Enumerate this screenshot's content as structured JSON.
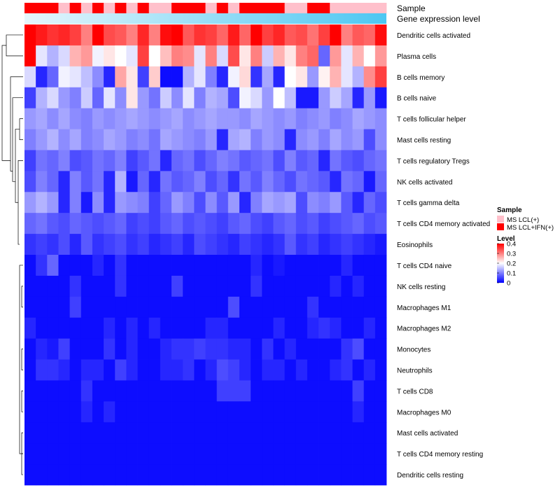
{
  "chart_data": {
    "type": "heatmap",
    "title": "",
    "annotation_tracks": [
      "Sample",
      "Gene expression level"
    ],
    "sample_groups": [
      "MS LCL+IFN(+)",
      "MS LCL+IFN(+)",
      "MS LCL+IFN(+)",
      "MS LCL(+)",
      "MS LCL+IFN(+)",
      "MS LCL(+)",
      "MS LCL+IFN(+)",
      "MS LCL(+)",
      "MS LCL+IFN(+)",
      "MS LCL(+)",
      "MS LCL+IFN(+)",
      "MS LCL(+)",
      "MS LCL(+)",
      "MS LCL+IFN(+)",
      "MS LCL+IFN(+)",
      "MS LCL+IFN(+)",
      "MS LCL(+)",
      "MS LCL+IFN(+)",
      "MS LCL(+)",
      "MS LCL+IFN(+)",
      "MS LCL+IFN(+)",
      "MS LCL+IFN(+)",
      "MS LCL+IFN(+)",
      "MS LCL(+)",
      "MS LCL(+)",
      "MS LCL+IFN(+)",
      "MS LCL+IFN(+)",
      "MS LCL(+)",
      "MS LCL(+)",
      "MS LCL(+)",
      "MS LCL(+)",
      "MS LCL(+)"
    ],
    "expression_gradient": [
      "#e6f6fc",
      "#4dc7f2"
    ],
    "rows": [
      {
        "label": "Dendritic cells activated",
        "values": [
          0.4,
          0.38,
          0.36,
          0.37,
          0.35,
          0.3,
          0.4,
          0.34,
          0.33,
          0.3,
          0.37,
          0.3,
          0.39,
          0.4,
          0.33,
          0.36,
          0.35,
          0.32,
          0.38,
          0.32,
          0.4,
          0.35,
          0.37,
          0.33,
          0.34,
          0.31,
          0.35,
          0.4,
          0.3,
          0.33,
          0.32,
          0.39
        ]
      },
      {
        "label": "Plasma cells",
        "values": [
          0.4,
          0.18,
          0.14,
          0.17,
          0.26,
          0.28,
          0.19,
          0.22,
          0.2,
          0.18,
          0.35,
          0.2,
          0.25,
          0.3,
          0.29,
          0.18,
          0.3,
          0.17,
          0.34,
          0.22,
          0.3,
          0.16,
          0.26,
          0.22,
          0.3,
          0.32,
          0.08,
          0.28,
          0.18,
          0.26,
          0.2,
          0.28
        ]
      },
      {
        "label": "B cells memory",
        "values": [
          0.17,
          0.03,
          0.08,
          0.19,
          0.18,
          0.15,
          0.11,
          0.03,
          0.27,
          0.22,
          0.05,
          0.24,
          0.01,
          0.01,
          0.14,
          0.18,
          0.1,
          0.03,
          0.19,
          0.23,
          0.04,
          0.13,
          0.03,
          0.2,
          0.22,
          0.12,
          0.21,
          0.26,
          0.18,
          0.14,
          0.29,
          0.35
        ]
      },
      {
        "label": "B cells naive",
        "values": [
          0.05,
          0.14,
          0.17,
          0.12,
          0.1,
          0.16,
          0.08,
          0.18,
          0.11,
          0.22,
          0.12,
          0.09,
          0.16,
          0.11,
          0.18,
          0.1,
          0.14,
          0.13,
          0.06,
          0.19,
          0.17,
          0.12,
          0.2,
          0.15,
          0.02,
          0.02,
          0.12,
          0.16,
          0.13,
          0.03,
          0.12,
          0.02
        ]
      },
      {
        "label": "T cells follicular helper",
        "values": [
          0.12,
          0.13,
          0.11,
          0.13,
          0.11,
          0.1,
          0.12,
          0.11,
          0.12,
          0.13,
          0.12,
          0.11,
          0.12,
          0.13,
          0.11,
          0.12,
          0.13,
          0.12,
          0.12,
          0.11,
          0.13,
          0.12,
          0.11,
          0.12,
          0.1,
          0.11,
          0.12,
          0.1,
          0.11,
          0.13,
          0.12,
          0.11
        ]
      },
      {
        "label": "Mast cells resting",
        "values": [
          0.1,
          0.12,
          0.14,
          0.11,
          0.13,
          0.1,
          0.11,
          0.13,
          0.12,
          0.1,
          0.11,
          0.09,
          0.13,
          0.12,
          0.11,
          0.1,
          0.12,
          0.03,
          0.13,
          0.14,
          0.1,
          0.12,
          0.11,
          0.03,
          0.11,
          0.12,
          0.1,
          0.13,
          0.11,
          0.12,
          0.06,
          0.11
        ]
      },
      {
        "label": "T cells regulatory  Tregs",
        "values": [
          0.05,
          0.09,
          0.08,
          0.1,
          0.06,
          0.07,
          0.09,
          0.08,
          0.1,
          0.05,
          0.07,
          0.09,
          0.03,
          0.08,
          0.09,
          0.06,
          0.08,
          0.1,
          0.09,
          0.07,
          0.08,
          0.09,
          0.06,
          0.1,
          0.07,
          0.08,
          0.03,
          0.09,
          0.07,
          0.06,
          0.08,
          0.09
        ]
      },
      {
        "label": "NK cells activated",
        "values": [
          0.06,
          0.1,
          0.08,
          0.03,
          0.1,
          0.07,
          0.09,
          0.03,
          0.14,
          0.02,
          0.08,
          0.03,
          0.09,
          0.07,
          0.08,
          0.1,
          0.06,
          0.08,
          0.04,
          0.09,
          0.07,
          0.1,
          0.08,
          0.06,
          0.09,
          0.08,
          0.07,
          0.03,
          0.09,
          0.08,
          0.02,
          0.08
        ]
      },
      {
        "label": "T cells gamma delta",
        "values": [
          0.12,
          0.14,
          0.12,
          0.03,
          0.1,
          0.02,
          0.11,
          0.03,
          0.12,
          0.11,
          0.1,
          0.05,
          0.08,
          0.12,
          0.1,
          0.06,
          0.11,
          0.07,
          0.12,
          0.03,
          0.1,
          0.13,
          0.12,
          0.13,
          0.06,
          0.11,
          0.1,
          0.12,
          0.07,
          0.03,
          0.08,
          0.06
        ]
      },
      {
        "label": "T cells CD4 memory activated",
        "values": [
          0.08,
          0.09,
          0.07,
          0.06,
          0.08,
          0.07,
          0.06,
          0.07,
          0.08,
          0.05,
          0.06,
          0.05,
          0.07,
          0.08,
          0.06,
          0.07,
          0.06,
          0.05,
          0.07,
          0.08,
          0.06,
          0.05,
          0.07,
          0.08,
          0.06,
          0.07,
          0.05,
          0.06,
          0.07,
          0.08,
          0.06,
          0.07
        ]
      },
      {
        "label": "Eosinophils",
        "values": [
          0.04,
          0.05,
          0.04,
          0.06,
          0.03,
          0.07,
          0.04,
          0.05,
          0.06,
          0.04,
          0.05,
          0.03,
          0.04,
          0.05,
          0.03,
          0.06,
          0.05,
          0.04,
          0.03,
          0.05,
          0.04,
          0.03,
          0.04,
          0.07,
          0.04,
          0.05,
          0.03,
          0.04,
          0.05,
          0.04,
          0.03,
          0.02
        ]
      },
      {
        "label": "T cells CD4 naive",
        "values": [
          0.01,
          0.04,
          0.08,
          0.01,
          0.01,
          0.01,
          0.03,
          0.01,
          0.04,
          0.01,
          0.01,
          0.01,
          0.01,
          0.01,
          0.01,
          0.01,
          0.01,
          0.01,
          0.01,
          0.01,
          0.03,
          0.01,
          0.02,
          0.01,
          0.01,
          0.01,
          0.01,
          0.01,
          0.03,
          0.01,
          0.01,
          0.01
        ]
      },
      {
        "label": "NK cells resting",
        "values": [
          0.01,
          0.01,
          0.01,
          0.01,
          0.04,
          0.01,
          0.01,
          0.01,
          0.04,
          0.01,
          0.01,
          0.01,
          0.01,
          0.05,
          0.01,
          0.01,
          0.01,
          0.01,
          0.01,
          0.01,
          0.04,
          0.01,
          0.01,
          0.01,
          0.01,
          0.01,
          0.01,
          0.03,
          0.01,
          0.03,
          0.01,
          0.01
        ]
      },
      {
        "label": "Macrophages M1",
        "values": [
          0.01,
          0.01,
          0.01,
          0.01,
          0.05,
          0.01,
          0.01,
          0.01,
          0.01,
          0.01,
          0.01,
          0.01,
          0.01,
          0.01,
          0.01,
          0.01,
          0.01,
          0.01,
          0.06,
          0.01,
          0.01,
          0.01,
          0.01,
          0.01,
          0.01,
          0.04,
          0.01,
          0.01,
          0.01,
          0.01,
          0.01,
          0.01
        ]
      },
      {
        "label": "Macrophages M2",
        "values": [
          0.03,
          0.01,
          0.01,
          0.01,
          0.01,
          0.01,
          0.01,
          0.03,
          0.01,
          0.03,
          0.01,
          0.03,
          0.01,
          0.01,
          0.01,
          0.01,
          0.03,
          0.03,
          0.01,
          0.01,
          0.01,
          0.01,
          0.03,
          0.01,
          0.01,
          0.03,
          0.04,
          0.03,
          0.01,
          0.01,
          0.03,
          0.01
        ]
      },
      {
        "label": "Monocytes",
        "values": [
          0.01,
          0.03,
          0.02,
          0.05,
          0.01,
          0.01,
          0.01,
          0.04,
          0.01,
          0.03,
          0.01,
          0.01,
          0.03,
          0.04,
          0.04,
          0.05,
          0.04,
          0.04,
          0.03,
          0.03,
          0.01,
          0.04,
          0.01,
          0.03,
          0.01,
          0.01,
          0.01,
          0.01,
          0.04,
          0.06,
          0.01,
          0.01
        ]
      },
      {
        "label": "Neutrophils",
        "values": [
          0.01,
          0.04,
          0.04,
          0.03,
          0.01,
          0.03,
          0.03,
          0.01,
          0.05,
          0.03,
          0.01,
          0.01,
          0.03,
          0.03,
          0.04,
          0.01,
          0.03,
          0.06,
          0.05,
          0.03,
          0.01,
          0.03,
          0.03,
          0.01,
          0.03,
          0.01,
          0.01,
          0.03,
          0.04,
          0.01,
          0.03,
          0.01
        ]
      },
      {
        "label": "T cells CD8",
        "values": [
          0.01,
          0.01,
          0.01,
          0.01,
          0.01,
          0.04,
          0.01,
          0.01,
          0.01,
          0.01,
          0.01,
          0.01,
          0.01,
          0.01,
          0.01,
          0.01,
          0.01,
          0.05,
          0.05,
          0.05,
          0.01,
          0.01,
          0.01,
          0.01,
          0.01,
          0.01,
          0.01,
          0.01,
          0.01,
          0.05,
          0.01,
          0.01
        ]
      },
      {
        "label": "Macrophages M0",
        "values": [
          0.01,
          0.01,
          0.01,
          0.01,
          0.01,
          0.03,
          0.01,
          0.03,
          0.01,
          0.01,
          0.01,
          0.01,
          0.01,
          0.01,
          0.01,
          0.01,
          0.01,
          0.01,
          0.01,
          0.01,
          0.01,
          0.01,
          0.01,
          0.01,
          0.01,
          0.01,
          0.01,
          0.01,
          0.01,
          0.03,
          0.01,
          0.01
        ]
      },
      {
        "label": "Mast cells activated",
        "values": [
          0.01,
          0.01,
          0.01,
          0.01,
          0.01,
          0.01,
          0.01,
          0.01,
          0.01,
          0.01,
          0.01,
          0.01,
          0.01,
          0.01,
          0.01,
          0.01,
          0.01,
          0.01,
          0.01,
          0.01,
          0.01,
          0.01,
          0.01,
          0.01,
          0.01,
          0.01,
          0.01,
          0.01,
          0.01,
          0.01,
          0.01,
          0.01
        ]
      },
      {
        "label": "T cells CD4 memory resting",
        "values": [
          0.01,
          0.01,
          0.01,
          0.01,
          0.01,
          0.01,
          0.01,
          0.01,
          0.01,
          0.01,
          0.01,
          0.01,
          0.01,
          0.01,
          0.01,
          0.01,
          0.01,
          0.01,
          0.01,
          0.01,
          0.01,
          0.01,
          0.01,
          0.01,
          0.01,
          0.01,
          0.01,
          0.01,
          0.01,
          0.01,
          0.01,
          0.01
        ]
      },
      {
        "label": "Dendritic cells resting",
        "values": [
          0.01,
          0.01,
          0.01,
          0.01,
          0.01,
          0.01,
          0.01,
          0.01,
          0.01,
          0.01,
          0.01,
          0.01,
          0.01,
          0.01,
          0.01,
          0.01,
          0.01,
          0.01,
          0.01,
          0.01,
          0.01,
          0.01,
          0.01,
          0.01,
          0.01,
          0.01,
          0.01,
          0.01,
          0.01,
          0.01,
          0.01,
          0.01
        ]
      }
    ],
    "legend": {
      "sample_title": "Sample",
      "sample_entries": [
        {
          "label": "MS LCL(+)",
          "color": "#ffc0cb"
        },
        {
          "label": "MS LCL+IFN(+)",
          "color": "#ff0000"
        }
      ],
      "level_title": "Level",
      "level_ticks": [
        "0.4",
        "0.3",
        "0.2",
        "0.1",
        "0"
      ],
      "level_range": [
        0,
        0.4
      ],
      "placement": "right"
    },
    "color_scale": {
      "low": "#0000ff",
      "mid": "#ffffff",
      "high": "#ff0000",
      "low_value": 0,
      "mid_value": 0.2,
      "high_value": 0.4
    }
  }
}
